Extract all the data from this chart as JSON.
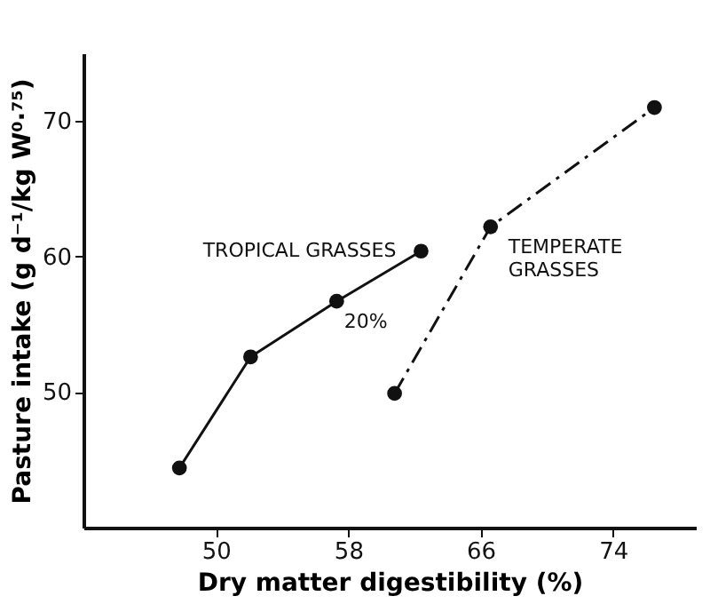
{
  "chart_data": {
    "type": "line",
    "xlabel": "Dry matter digestibility (%)",
    "ylabel": "Pasture intake (g d⁻¹/kg W⁰·⁷⁵)",
    "series": [
      {
        "color": "#111111",
        "line_style": "solid",
        "x": [
          47.8,
          52.1,
          57.3,
          62.4
        ],
        "values": [
          44.4,
          52.6,
          56.7,
          60.4
        ]
      },
      {
        "color": "#111111",
        "line_style": "dashed",
        "x": [
          60.8,
          66.6,
          76.5
        ],
        "values": [
          49.9,
          62.2,
          71.0
        ]
      }
    ],
    "marker": "circle",
    "xlim": [
      42,
      79
    ],
    "xticks": [
      50,
      58,
      66,
      74
    ],
    "ylim": [
      40,
      75
    ],
    "yticks": [
      50,
      60,
      70
    ],
    "grid": false,
    "annotations": [
      "TROPICAL GRASSES",
      "TEMPERATE GRASSES",
      "20%"
    ]
  }
}
